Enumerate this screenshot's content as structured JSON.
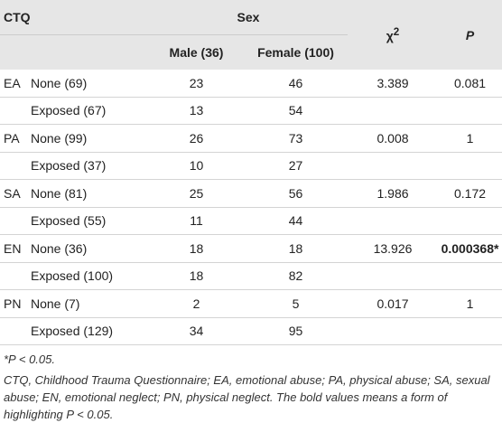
{
  "header": {
    "ctq": "CTQ",
    "sex": "Sex",
    "chi": "χ",
    "chi_sup": "2",
    "p": "P",
    "male": "Male (36)",
    "female": "Female (100)"
  },
  "table": {
    "rows": [
      [
        "EA",
        "None (69)",
        23,
        46,
        3.389,
        0.081
      ],
      [
        null,
        "Exposed (67)",
        13,
        54,
        null,
        null
      ],
      [
        "PA",
        "None (99)",
        26,
        73,
        0.008,
        1
      ],
      [
        null,
        "Exposed (37)",
        10,
        27,
        null,
        null
      ],
      [
        "SA",
        "None (81)",
        25,
        56,
        1.986,
        0.172
      ],
      [
        null,
        "Exposed (55)",
        11,
        44,
        null,
        null
      ],
      [
        "EN",
        "None (36)",
        18,
        18,
        13.926,
        "0.000368*"
      ],
      [
        null,
        "Exposed (100)",
        18,
        82,
        null,
        null
      ],
      [
        "PN",
        "None (7)",
        2,
        5,
        0.017,
        1
      ],
      [
        null,
        "Exposed (129)",
        34,
        95,
        null,
        null
      ]
    ],
    "bold_cells": [
      [
        6,
        5
      ]
    ]
  },
  "footnotes": [
    "*P < 0.05.",
    "CTQ, Childhood Trauma Questionnaire; EA, emotional abuse; PA, physical abuse; SA, sexual abuse; EN, emotional neglect; PN, physical neglect. The bold values means a form of highlighting P < 0.05."
  ]
}
